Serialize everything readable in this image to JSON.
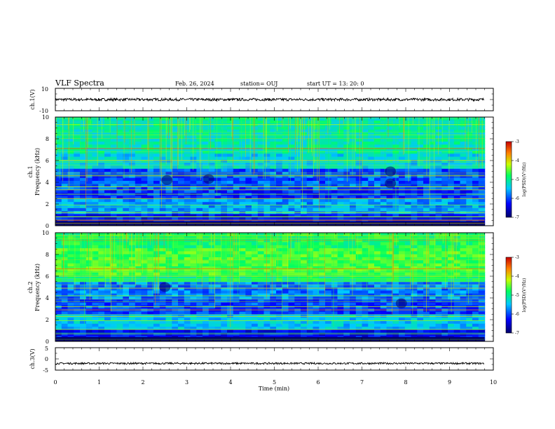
{
  "header": {
    "title": "VLF Spectra",
    "date": "Feb. 26, 2024",
    "station": "station= OUJ",
    "start": "start  UT  =   13: 20: 0"
  },
  "chart_data": [
    {
      "type": "line",
      "panel": "ch1-waveform",
      "ylabel": "ch.1(V)",
      "ylim": [
        -10,
        10
      ],
      "y_ticks": [
        "10",
        "-10"
      ],
      "xlim": [
        0,
        10
      ],
      "series": [
        {
          "x_range": [
            0,
            9.8
          ],
          "level": 0,
          "amplitude": 1.2
        }
      ]
    },
    {
      "type": "heatmap",
      "panel": "ch1-spectrogram",
      "ylabel_top": "ch.1",
      "ylabel": "Frequency  (kHz)",
      "ylim": [
        0,
        10
      ],
      "y_ticks": [
        "0",
        "2",
        "4",
        "6",
        "8",
        "10"
      ],
      "xlim": [
        0,
        10
      ],
      "data_x_range": [
        0,
        9.8
      ],
      "colorbar": {
        "label": "log(PSD)(V²/Hz)",
        "range": [
          -7,
          -3
        ],
        "ticks": [
          "-3",
          "-4",
          "-5",
          "-6",
          "-7"
        ]
      }
    },
    {
      "type": "heatmap",
      "panel": "ch2-spectrogram",
      "ylabel_top": "ch.2",
      "ylabel": "Frequency  (kHz)",
      "ylim": [
        0,
        10
      ],
      "y_ticks": [
        "0",
        "2",
        "4",
        "6",
        "8",
        "10"
      ],
      "xlim": [
        0,
        10
      ],
      "data_x_range": [
        0,
        9.8
      ],
      "colorbar": {
        "label": "log(PSD)(V²/Hz)",
        "range": [
          -7,
          -3
        ],
        "ticks": [
          "-3",
          "-4",
          "-5",
          "-6",
          "-7"
        ]
      }
    },
    {
      "type": "line",
      "panel": "ch3-waveform",
      "ylabel": "ch.3(V)",
      "ylim": [
        -5,
        5
      ],
      "y_ticks": [
        "5",
        "0",
        "-5"
      ],
      "xlim": [
        0,
        10
      ],
      "xlabel": "Time  (min)",
      "x_ticks": [
        "0",
        "1",
        "2",
        "3",
        "4",
        "5",
        "6",
        "7",
        "8",
        "9",
        "10"
      ],
      "series": [
        {
          "x_range": [
            0,
            9.8
          ],
          "level": -2,
          "amplitude": 0.4
        }
      ]
    }
  ],
  "colors": {
    "background": "#ffffff",
    "axes": "#000000",
    "colormap": [
      "#00006a",
      "#0000ff",
      "#00c8ff",
      "#00ff60",
      "#c8ff00",
      "#ff8000",
      "#c80000"
    ]
  }
}
